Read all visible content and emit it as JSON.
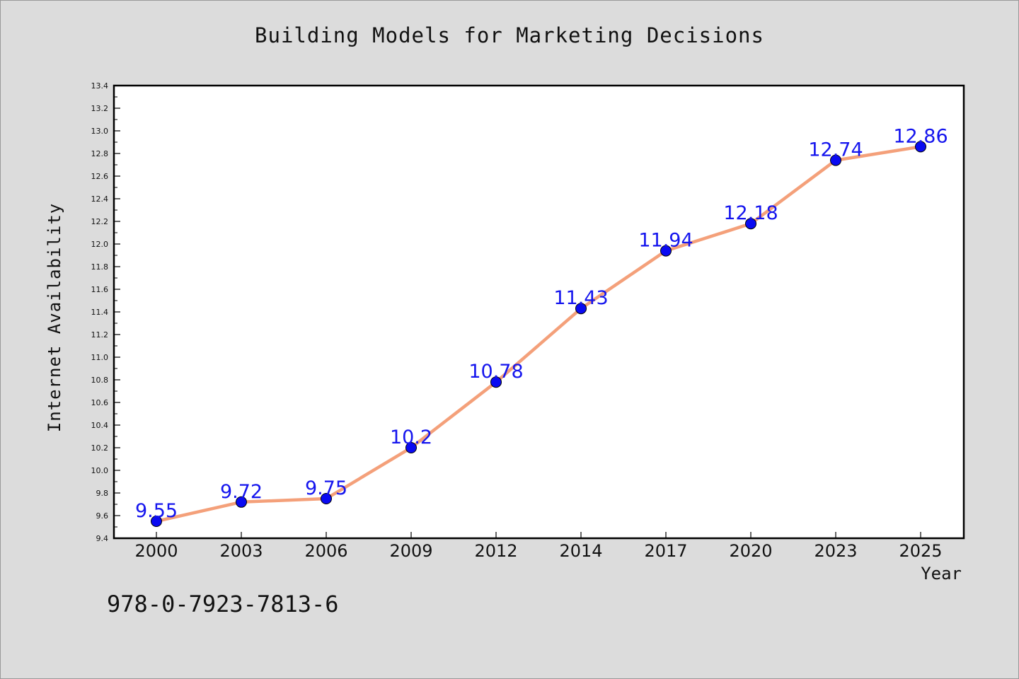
{
  "chart_data": {
    "type": "line",
    "title": "Building Models for Marketing Decisions",
    "xlabel": "Year",
    "ylabel": "Internet Availability",
    "categories": [
      "2000",
      "2003",
      "2006",
      "2009",
      "2012",
      "2014",
      "2017",
      "2020",
      "2023",
      "2025"
    ],
    "series": [
      {
        "values": [
          9.55,
          9.72,
          9.75,
          10.2,
          10.78,
          11.43,
          11.94,
          12.18,
          12.74,
          12.86
        ],
        "labels": [
          "9.55",
          "9.72",
          "9.75",
          "10.2",
          "10.78",
          "11.43",
          "11.94",
          "12.18",
          "12.74",
          "12.86"
        ]
      }
    ],
    "ylim": [
      9.4,
      13.4
    ],
    "yticks": [
      "9.4",
      "9.6",
      "9.8",
      "10.0",
      "10.2",
      "10.4",
      "10.6",
      "10.8",
      "11.0",
      "11.2",
      "11.4",
      "11.6",
      "11.8",
      "12.0",
      "12.2",
      "12.4",
      "12.6",
      "12.8",
      "13.0",
      "13.2",
      "13.4"
    ],
    "grid": false,
    "colors": {
      "line": "#f4a07a",
      "marker": "#0a0af2",
      "data_label": "#1515ee",
      "background": "#dcdcdc",
      "plot_area": "#ffffff"
    }
  },
  "footer": {
    "text": "978-0-7923-7813-6"
  }
}
